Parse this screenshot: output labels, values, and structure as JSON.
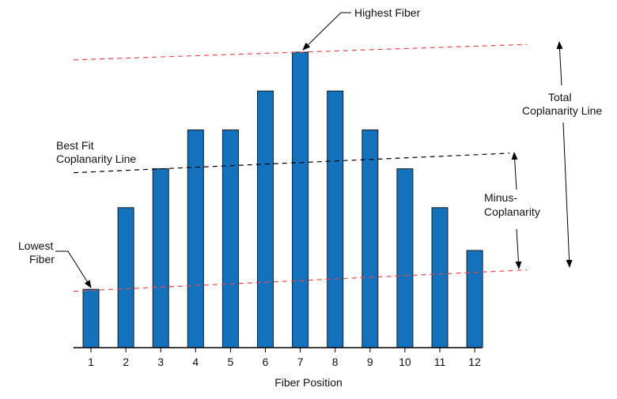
{
  "chart_data": {
    "type": "bar",
    "title": "",
    "xlabel": "Fiber Position",
    "ylabel": "",
    "categories": [
      "1",
      "2",
      "3",
      "4",
      "5",
      "6",
      "7",
      "8",
      "9",
      "10",
      "11",
      "12"
    ],
    "values": [
      1.5,
      3.6,
      4.6,
      5.6,
      5.6,
      6.6,
      7.6,
      6.6,
      5.6,
      4.6,
      3.6,
      2.5
    ],
    "ylim": [
      0,
      7.6
    ],
    "grid": false,
    "colors": {
      "bar": "#1472bc",
      "reference_line": "#e8474a",
      "fit_line": "#000000"
    },
    "reference_lines": {
      "total_upper": {
        "from": [
          0.5,
          7.4
        ],
        "to": [
          13.5,
          7.8
        ],
        "color": "#e8474a"
      },
      "total_lower": {
        "from": [
          0.5,
          1.45
        ],
        "to": [
          13.5,
          2.0
        ],
        "color": "#e8474a"
      },
      "best_fit": {
        "from": [
          0.5,
          4.5
        ],
        "to": [
          13.0,
          5.0
        ],
        "color": "#000000"
      }
    },
    "annotations": {
      "highest": {
        "lines": [
          "Highest Fiber"
        ],
        "points_to": "7"
      },
      "lowest": {
        "lines": [
          "Lowest",
          "Fiber"
        ],
        "points_to": "1"
      },
      "best_fit": {
        "lines": [
          "Best Fit",
          "Coplanarity Line"
        ]
      },
      "minus": {
        "lines": [
          "Minus-",
          "Coplanarity"
        ]
      },
      "total": {
        "lines": [
          "Total",
          "Coplanarity Line"
        ]
      }
    }
  }
}
